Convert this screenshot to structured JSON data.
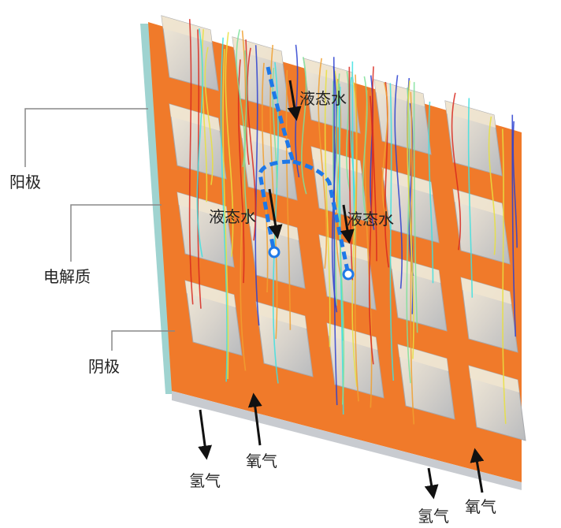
{
  "labels": {
    "anode": "阳极",
    "electrolyte": "电解质",
    "cathode": "阴极",
    "water": [
      "液态水",
      "液态水",
      "液态水"
    ],
    "oxygen": [
      "氧气",
      "氧气"
    ],
    "hydrogen": [
      "氢气",
      "氢气"
    ]
  }
}
